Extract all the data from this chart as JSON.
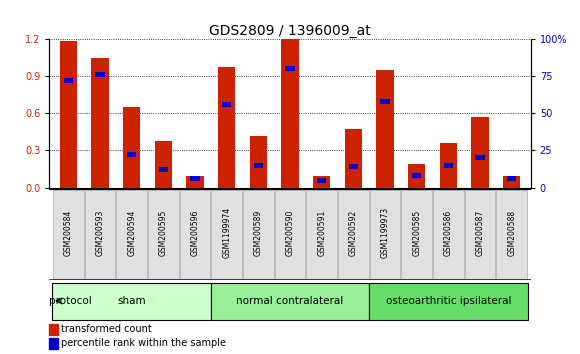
{
  "title": "GDS2809 / 1396009_at",
  "samples": [
    "GSM200584",
    "GSM200593",
    "GSM200594",
    "GSM200595",
    "GSM200596",
    "GSM1199974",
    "GSM200589",
    "GSM200590",
    "GSM200591",
    "GSM200592",
    "GSM1199973",
    "GSM200585",
    "GSM200586",
    "GSM200587",
    "GSM200588"
  ],
  "transformed_count": [
    1.18,
    1.05,
    0.65,
    0.38,
    0.09,
    0.97,
    0.42,
    1.2,
    0.09,
    0.47,
    0.95,
    0.19,
    0.36,
    0.57,
    0.09
  ],
  "percentile_rank": [
    72,
    76,
    22,
    12,
    6,
    56,
    15,
    80,
    5,
    14,
    58,
    8,
    15,
    20,
    6
  ],
  "groups": [
    {
      "label": "sham",
      "start": 0,
      "end": 5,
      "color": "#ccffcc"
    },
    {
      "label": "normal contralateral",
      "start": 5,
      "end": 10,
      "color": "#99ee99"
    },
    {
      "label": "osteoarthritic ipsilateral",
      "start": 10,
      "end": 15,
      "color": "#66dd66"
    }
  ],
  "bar_color_red": "#cc2200",
  "bar_color_blue": "#0000cc",
  "ylim_left": [
    0,
    1.2
  ],
  "ylim_right": [
    0,
    100
  ],
  "yticks_left": [
    0,
    0.3,
    0.6,
    0.9,
    1.2
  ],
  "yticks_right": [
    0,
    25,
    50,
    75,
    100
  ],
  "ytick_labels_right": [
    "0",
    "25",
    "50",
    "75",
    "100%"
  ],
  "background_color": "#ffffff",
  "grid_color": "#000000",
  "protocol_label": "protocol",
  "legend_tc": "transformed count",
  "legend_pr": "percentile rank within the sample",
  "title_fontsize": 10,
  "tick_fontsize": 7,
  "label_fontsize": 7.5,
  "sample_fontsize": 5.5,
  "legend_fontsize": 7
}
